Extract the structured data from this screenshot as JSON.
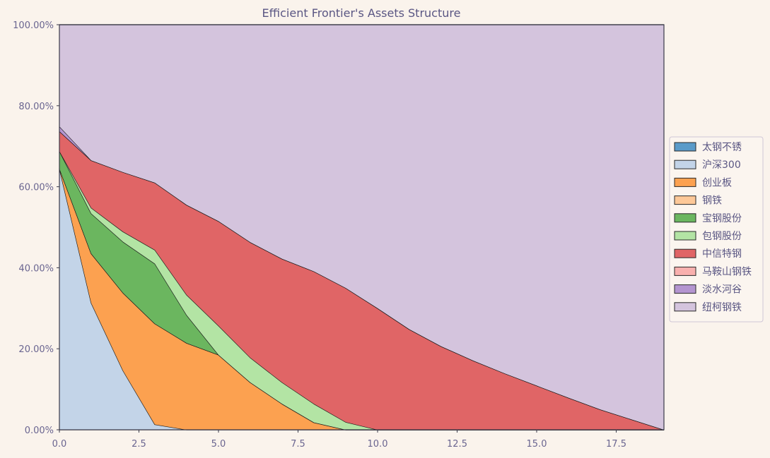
{
  "chart_data": {
    "type": "area",
    "stacked": true,
    "percent": true,
    "title": "Efficient Frontier's Assets Structure",
    "xlabel": "",
    "ylabel": "",
    "xlim": [
      0,
      19
    ],
    "ylim": [
      0,
      100
    ],
    "xticks": [
      0.0,
      2.5,
      5.0,
      7.5,
      10.0,
      12.5,
      15.0,
      17.5
    ],
    "xtick_labels": [
      "0.0",
      "2.5",
      "5.0",
      "7.5",
      "10.0",
      "12.5",
      "15.0",
      "17.5"
    ],
    "yticks": [
      0,
      20,
      40,
      60,
      80,
      100
    ],
    "ytick_labels": [
      "0.00%",
      "20.00%",
      "40.00%",
      "60.00%",
      "80.00%",
      "100.00%"
    ],
    "grid": true,
    "legend_position": "right",
    "x": [
      0,
      1,
      2,
      3,
      4,
      5,
      6,
      7,
      8,
      9,
      10,
      11,
      12,
      13,
      14,
      15,
      16,
      17,
      18,
      19
    ],
    "series": [
      {
        "name": "太钢不锈",
        "color": "#5A9BC9",
        "values": [
          0,
          0,
          0,
          0,
          0,
          0,
          0,
          0,
          0,
          0,
          0,
          0,
          0,
          0,
          0,
          0,
          0,
          0,
          0,
          0
        ]
      },
      {
        "name": "沪深300",
        "color": "#C3D4E8",
        "values": [
          64.5,
          31.3,
          14.6,
          1.3,
          0,
          0,
          0,
          0,
          0,
          0,
          0,
          0,
          0,
          0,
          0,
          0,
          0,
          0,
          0,
          0
        ]
      },
      {
        "name": "创业板",
        "color": "#FCA150",
        "values": [
          0,
          12.2,
          19.2,
          24.9,
          21.4,
          18.5,
          11.7,
          6.4,
          1.8,
          0,
          0,
          0,
          0,
          0,
          0,
          0,
          0,
          0,
          0,
          0
        ]
      },
      {
        "name": "钢铁",
        "color": "#FDC898",
        "values": [
          0,
          0,
          0,
          0,
          0,
          0,
          0,
          0,
          0,
          0,
          0,
          0,
          0,
          0,
          0,
          0,
          0,
          0,
          0,
          0
        ]
      },
      {
        "name": "宝钢股份",
        "color": "#6BB65F",
        "values": [
          4.3,
          9.9,
          12.6,
          14.8,
          6.9,
          0,
          0,
          0,
          0,
          0,
          0,
          0,
          0,
          0,
          0,
          0,
          0,
          0,
          0,
          0
        ]
      },
      {
        "name": "包钢股份",
        "color": "#B3E4A4",
        "values": [
          0,
          1.4,
          2.5,
          3.4,
          5.0,
          7.2,
          6.1,
          5.3,
          4.6,
          1.9,
          0,
          0,
          0,
          0,
          0,
          0,
          0,
          0,
          0,
          0
        ]
      },
      {
        "name": "中信特钢",
        "color": "#E06566",
        "values": [
          4.9,
          11.7,
          14.7,
          16.6,
          22.2,
          25.8,
          28.5,
          30.5,
          32.7,
          33.1,
          30.0,
          24.8,
          20.6,
          17.1,
          13.9,
          10.9,
          7.9,
          5.0,
          2.5,
          0
        ]
      },
      {
        "name": "马鞍山钢铁",
        "color": "#F9B0AE",
        "values": [
          0,
          0,
          0,
          0,
          0,
          0,
          0,
          0,
          0,
          0,
          0,
          0,
          0,
          0,
          0,
          0,
          0,
          0,
          0,
          0
        ]
      },
      {
        "name": "淡水河谷",
        "color": "#B495D0",
        "values": [
          1.2,
          0,
          0,
          0,
          0,
          0,
          0,
          0,
          0,
          0,
          0,
          0,
          0,
          0,
          0,
          0,
          0,
          0,
          0,
          0
        ]
      },
      {
        "name": "纽柯钢铁",
        "color": "#D4C4DD",
        "values": [
          25.1,
          33.5,
          36.4,
          39.0,
          44.5,
          48.5,
          53.7,
          57.8,
          60.9,
          65.0,
          70.0,
          75.2,
          79.4,
          82.9,
          86.1,
          89.1,
          92.1,
          95.0,
          97.5,
          100.0
        ]
      }
    ]
  }
}
